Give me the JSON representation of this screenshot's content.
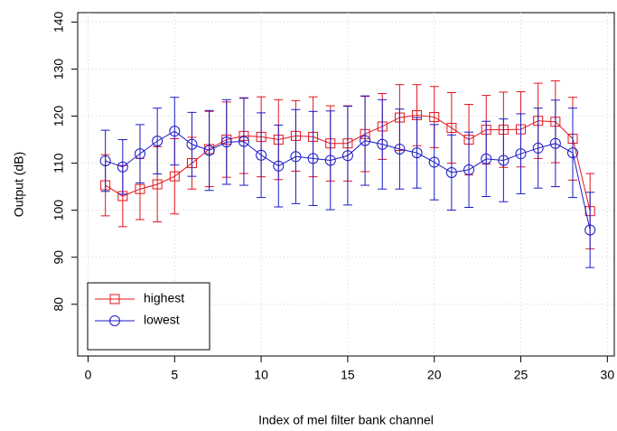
{
  "chart_data": {
    "type": "line",
    "xlabel": "Index of mel filter bank channel",
    "ylabel": "Output (dB)",
    "x": [
      1,
      2,
      3,
      4,
      5,
      6,
      7,
      8,
      9,
      10,
      11,
      12,
      13,
      14,
      15,
      16,
      17,
      18,
      19,
      20,
      21,
      22,
      23,
      24,
      25,
      26,
      27,
      28,
      29
    ],
    "series": [
      {
        "name": "highest",
        "color": "#e3141c",
        "marker": "square",
        "values": [
          105.3,
          103,
          104.5,
          105.5,
          107.2,
          110,
          113,
          115,
          115.8,
          115.6,
          115,
          115.8,
          115.6,
          114.2,
          114.2,
          116.2,
          117.8,
          119.7,
          120.2,
          119.8,
          117.5,
          115,
          117.1,
          117.1,
          117.2,
          119,
          118.8,
          115.2,
          99.8
        ],
        "errors": [
          6.5,
          6.5,
          6.5,
          8,
          8,
          5.5,
          8,
          8,
          8,
          8.5,
          8.5,
          7.5,
          8.5,
          8,
          8,
          8,
          7,
          7,
          6.5,
          6.5,
          7.5,
          7.5,
          7.3,
          8,
          8,
          8,
          8.7,
          8.8,
          8
        ]
      },
      {
        "name": "lowest",
        "color": "#1a1ac8",
        "marker": "circle",
        "values": [
          110.5,
          109.2,
          112,
          114.7,
          116.8,
          114,
          112.7,
          114.5,
          114.6,
          111.7,
          109.4,
          111.4,
          111,
          110.6,
          111.6,
          114.8,
          114,
          113,
          112.2,
          110.2,
          108,
          108.6,
          110.9,
          110.6,
          112,
          113.2,
          114.2,
          112.2,
          95.8
        ],
        "errors": [
          6.5,
          5.8,
          6.2,
          7,
          7.2,
          6.8,
          8.5,
          9,
          9.3,
          9,
          8.7,
          10,
          10,
          10.5,
          10.5,
          9.5,
          9.5,
          8.5,
          7.5,
          8,
          8,
          8,
          8,
          8.8,
          8.5,
          8.5,
          9.2,
          9.5,
          8
        ]
      }
    ],
    "xlim": [
      -0.6,
      30.4
    ],
    "xticks": [
      0,
      5,
      10,
      15,
      20,
      25,
      30
    ],
    "ylim": [
      69,
      142
    ],
    "yticks": [
      80,
      90,
      100,
      110,
      120,
      130,
      140
    ],
    "grid": true,
    "legend": "bottomleft"
  }
}
